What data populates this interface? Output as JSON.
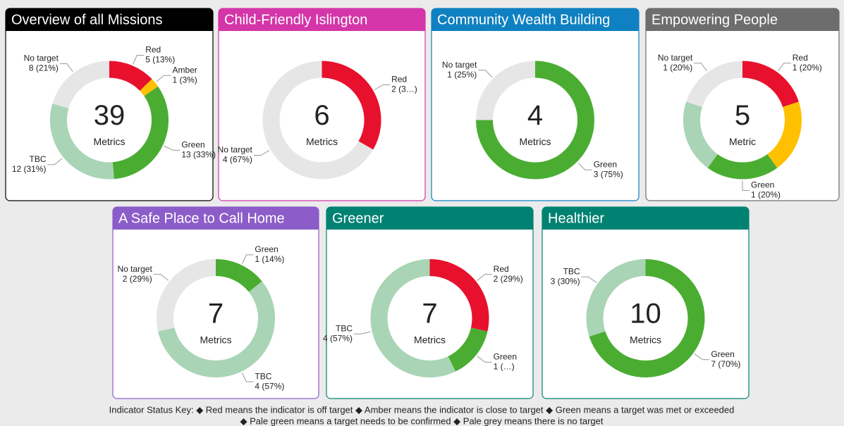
{
  "chart_data": [
    {
      "type": "pie",
      "title": "Overview of all Missions",
      "header_color": "#000000",
      "total": 39,
      "center_label": "Metrics",
      "categories": [
        "Red",
        "Amber",
        "Green",
        "TBC",
        "No target"
      ],
      "values": [
        5,
        1,
        13,
        12,
        8
      ],
      "value_labels": [
        "5 (13%)",
        "1 (3%)",
        "13 (33%)",
        "12 (31%)",
        "8 (21%)"
      ],
      "colors": [
        "#e8112d",
        "#ffc000",
        "#4aad32",
        "#a9d4b5",
        "#e6e6e6"
      ]
    },
    {
      "type": "pie",
      "title": "Child-Friendly Islington",
      "header_color": "#d435a8",
      "total": 6,
      "center_label": "Metrics",
      "categories": [
        "Red",
        "No target"
      ],
      "values": [
        2,
        4
      ],
      "value_labels": [
        "2 (3…)",
        "4 (67%)"
      ],
      "colors": [
        "#e8112d",
        "#e6e6e6"
      ]
    },
    {
      "type": "pie",
      "title": "Community Wealth Building",
      "header_color": "#0f80c1",
      "total": 4,
      "center_label": "Metrics",
      "categories": [
        "Green",
        "No target"
      ],
      "values": [
        3,
        1
      ],
      "value_labels": [
        "3 (75%)",
        "1 (25%)"
      ],
      "colors": [
        "#4aad32",
        "#e6e6e6"
      ]
    },
    {
      "type": "pie",
      "title": "Empowering People",
      "header_color": "#6d6d6d",
      "total": 5,
      "center_label": "Metric",
      "categories": [
        "Red",
        null,
        "Green",
        null,
        "No target"
      ],
      "values": [
        1,
        1,
        1,
        1,
        1
      ],
      "value_labels": [
        "1 (20%)",
        null,
        "1 (20%)",
        null,
        "1 (20%)"
      ],
      "colors": [
        "#e8112d",
        "#ffc000",
        "#4aad32",
        "#a9d4b5",
        "#e6e6e6"
      ]
    },
    {
      "type": "pie",
      "title": "A Safe Place to Call Home",
      "header_color": "#8c5cc9",
      "total": 7,
      "center_label": "Metrics",
      "categories": [
        "Green",
        "TBC",
        "No target"
      ],
      "values": [
        1,
        4,
        2
      ],
      "value_labels": [
        "1 (14%)",
        "4 (57%)",
        "2 (29%)"
      ],
      "colors": [
        "#4aad32",
        "#a9d4b5",
        "#e6e6e6"
      ]
    },
    {
      "type": "pie",
      "title": "Greener",
      "header_color": "#008272",
      "total": 7,
      "center_label": "Metrics",
      "categories": [
        "Red",
        "Green",
        "TBC"
      ],
      "values": [
        2,
        1,
        4
      ],
      "value_labels": [
        "2 (29%)",
        "1 (…)",
        "4 (57%)"
      ],
      "colors": [
        "#e8112d",
        "#4aad32",
        "#a9d4b5"
      ]
    },
    {
      "type": "pie",
      "title": "Healthier",
      "header_color": "#008272",
      "total": 10,
      "center_label": "Metrics",
      "categories": [
        "Green",
        "TBC"
      ],
      "values": [
        7,
        3
      ],
      "value_labels": [
        "7 (70%)",
        "3 (30%)"
      ],
      "colors": [
        "#4aad32",
        "#a9d4b5"
      ]
    }
  ],
  "footer": [
    "Indicator Status Key: ◆ Red means the indicator is off target ◆ Amber means the indicator is close to target ◆ Green means a target was met or exceeded",
    "◆ Pale green means a target needs to be confirmed ◆ Pale grey means there is no target"
  ]
}
